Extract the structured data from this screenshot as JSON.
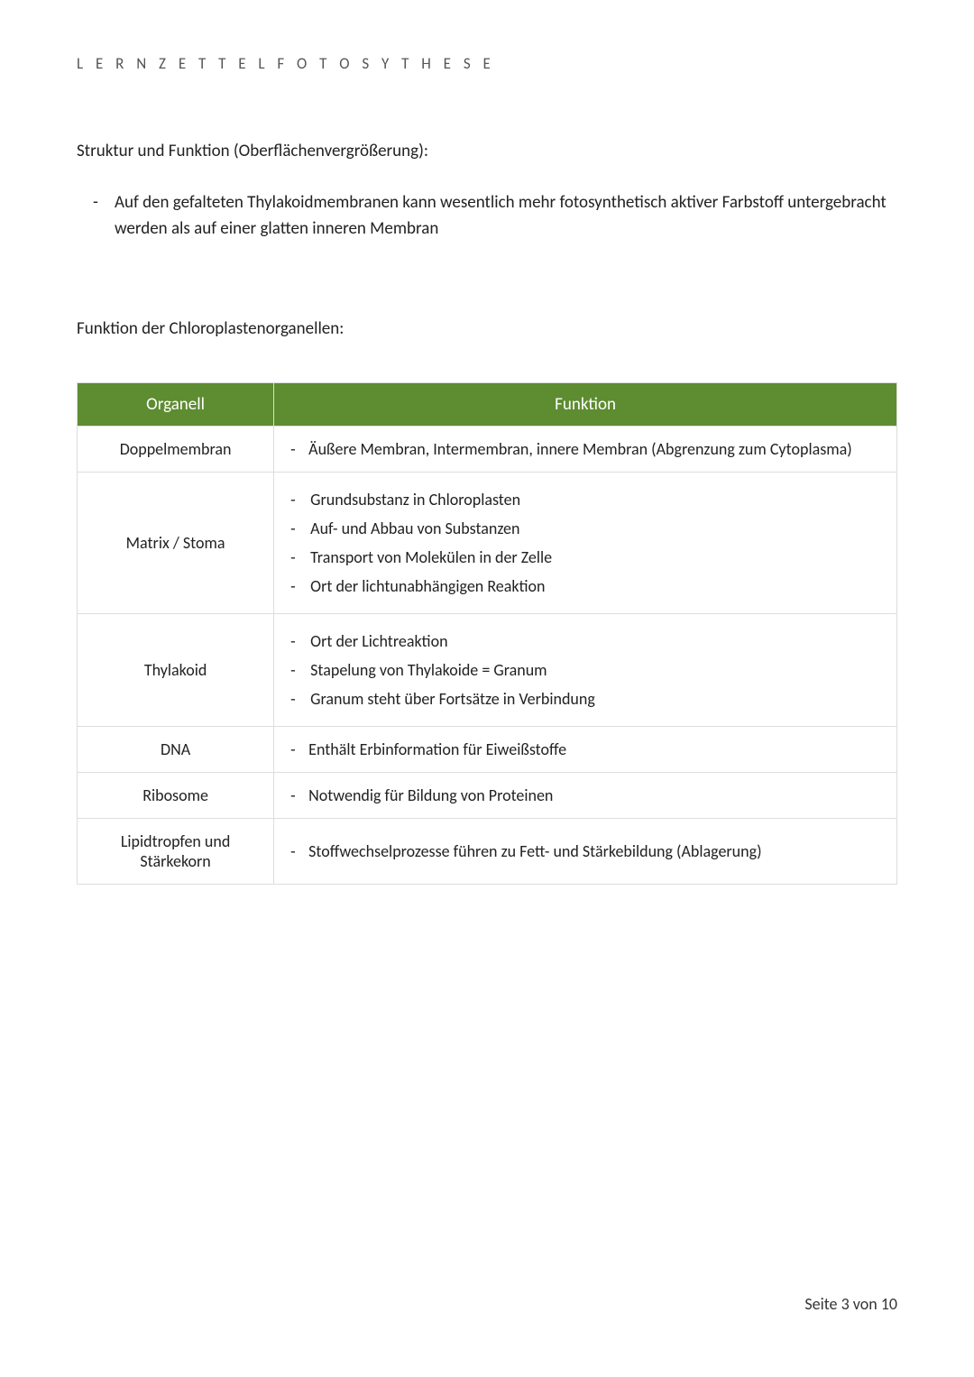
{
  "header": {
    "title": "L E R N Z E T T E L   F O T O S Y T H E S E"
  },
  "section1": {
    "heading": "Struktur und Funktion (Oberflächenvergrößerung):",
    "bullet": "Auf den gefalteten Thylakoidmembranen kann wesentlich mehr fotosynthetisch aktiver Farbstoff untergebracht werden als auf einer glatten inneren Membran"
  },
  "section2": {
    "heading": "Funktion der Chloroplastenorganellen:"
  },
  "table": {
    "headers": {
      "col1": "Organell",
      "col2": "Funktion"
    },
    "header_bg_color": "#5e8c31",
    "header_text_color": "#ffffff",
    "border_color": "#dddddd",
    "rows": [
      {
        "organell": "Doppelmembran",
        "funktion_single": "Äußere Membran, Intermembran, innere Membran (Abgrenzung zum Cytoplasma)"
      },
      {
        "organell": "Matrix / Stoma",
        "funktion_list": [
          "Grundsubstanz in Chloroplasten",
          "Auf- und Abbau von Substanzen",
          "Transport von Molekülen in der Zelle",
          "Ort der lichtunabhängigen Reaktion"
        ]
      },
      {
        "organell": "Thylakoid",
        "funktion_list": [
          "Ort der Lichtreaktion",
          "Stapelung von Thylakoide = Granum",
          "Granum steht über Fortsätze in Verbindung"
        ]
      },
      {
        "organell": "DNA",
        "funktion_single": "Enthält Erbinformation für Eiweißstoffe"
      },
      {
        "organell": "Ribosome",
        "funktion_single": "Notwendig für Bildung von Proteinen"
      },
      {
        "organell": "Lipidtropfen und Stärkekorn",
        "funktion_single": "Stoffwechselprozesse führen zu Fett- und Stärkebildung (Ablagerung)"
      }
    ]
  },
  "footer": {
    "page_text": "Seite 3 von 10"
  }
}
